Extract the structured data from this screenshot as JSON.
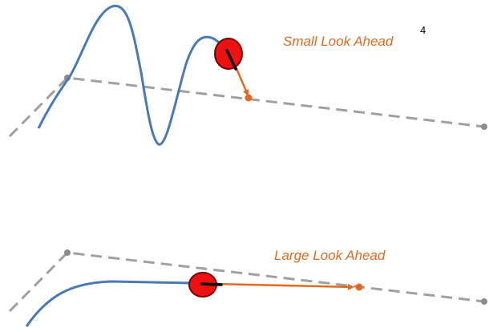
{
  "page_number": "4",
  "top_panel": {
    "label": "Small Look Ahead"
  },
  "bottom_panel": {
    "label": "Large Look Ahead"
  },
  "colors": {
    "path": "#a0a0a0",
    "trajectory": "#4a7ab5",
    "vehicle": "#ee1111",
    "vehicle_outline": "#7a0000",
    "heading": "#000000",
    "lookahead": "#e06a1f",
    "label": "#e06a1f"
  }
}
